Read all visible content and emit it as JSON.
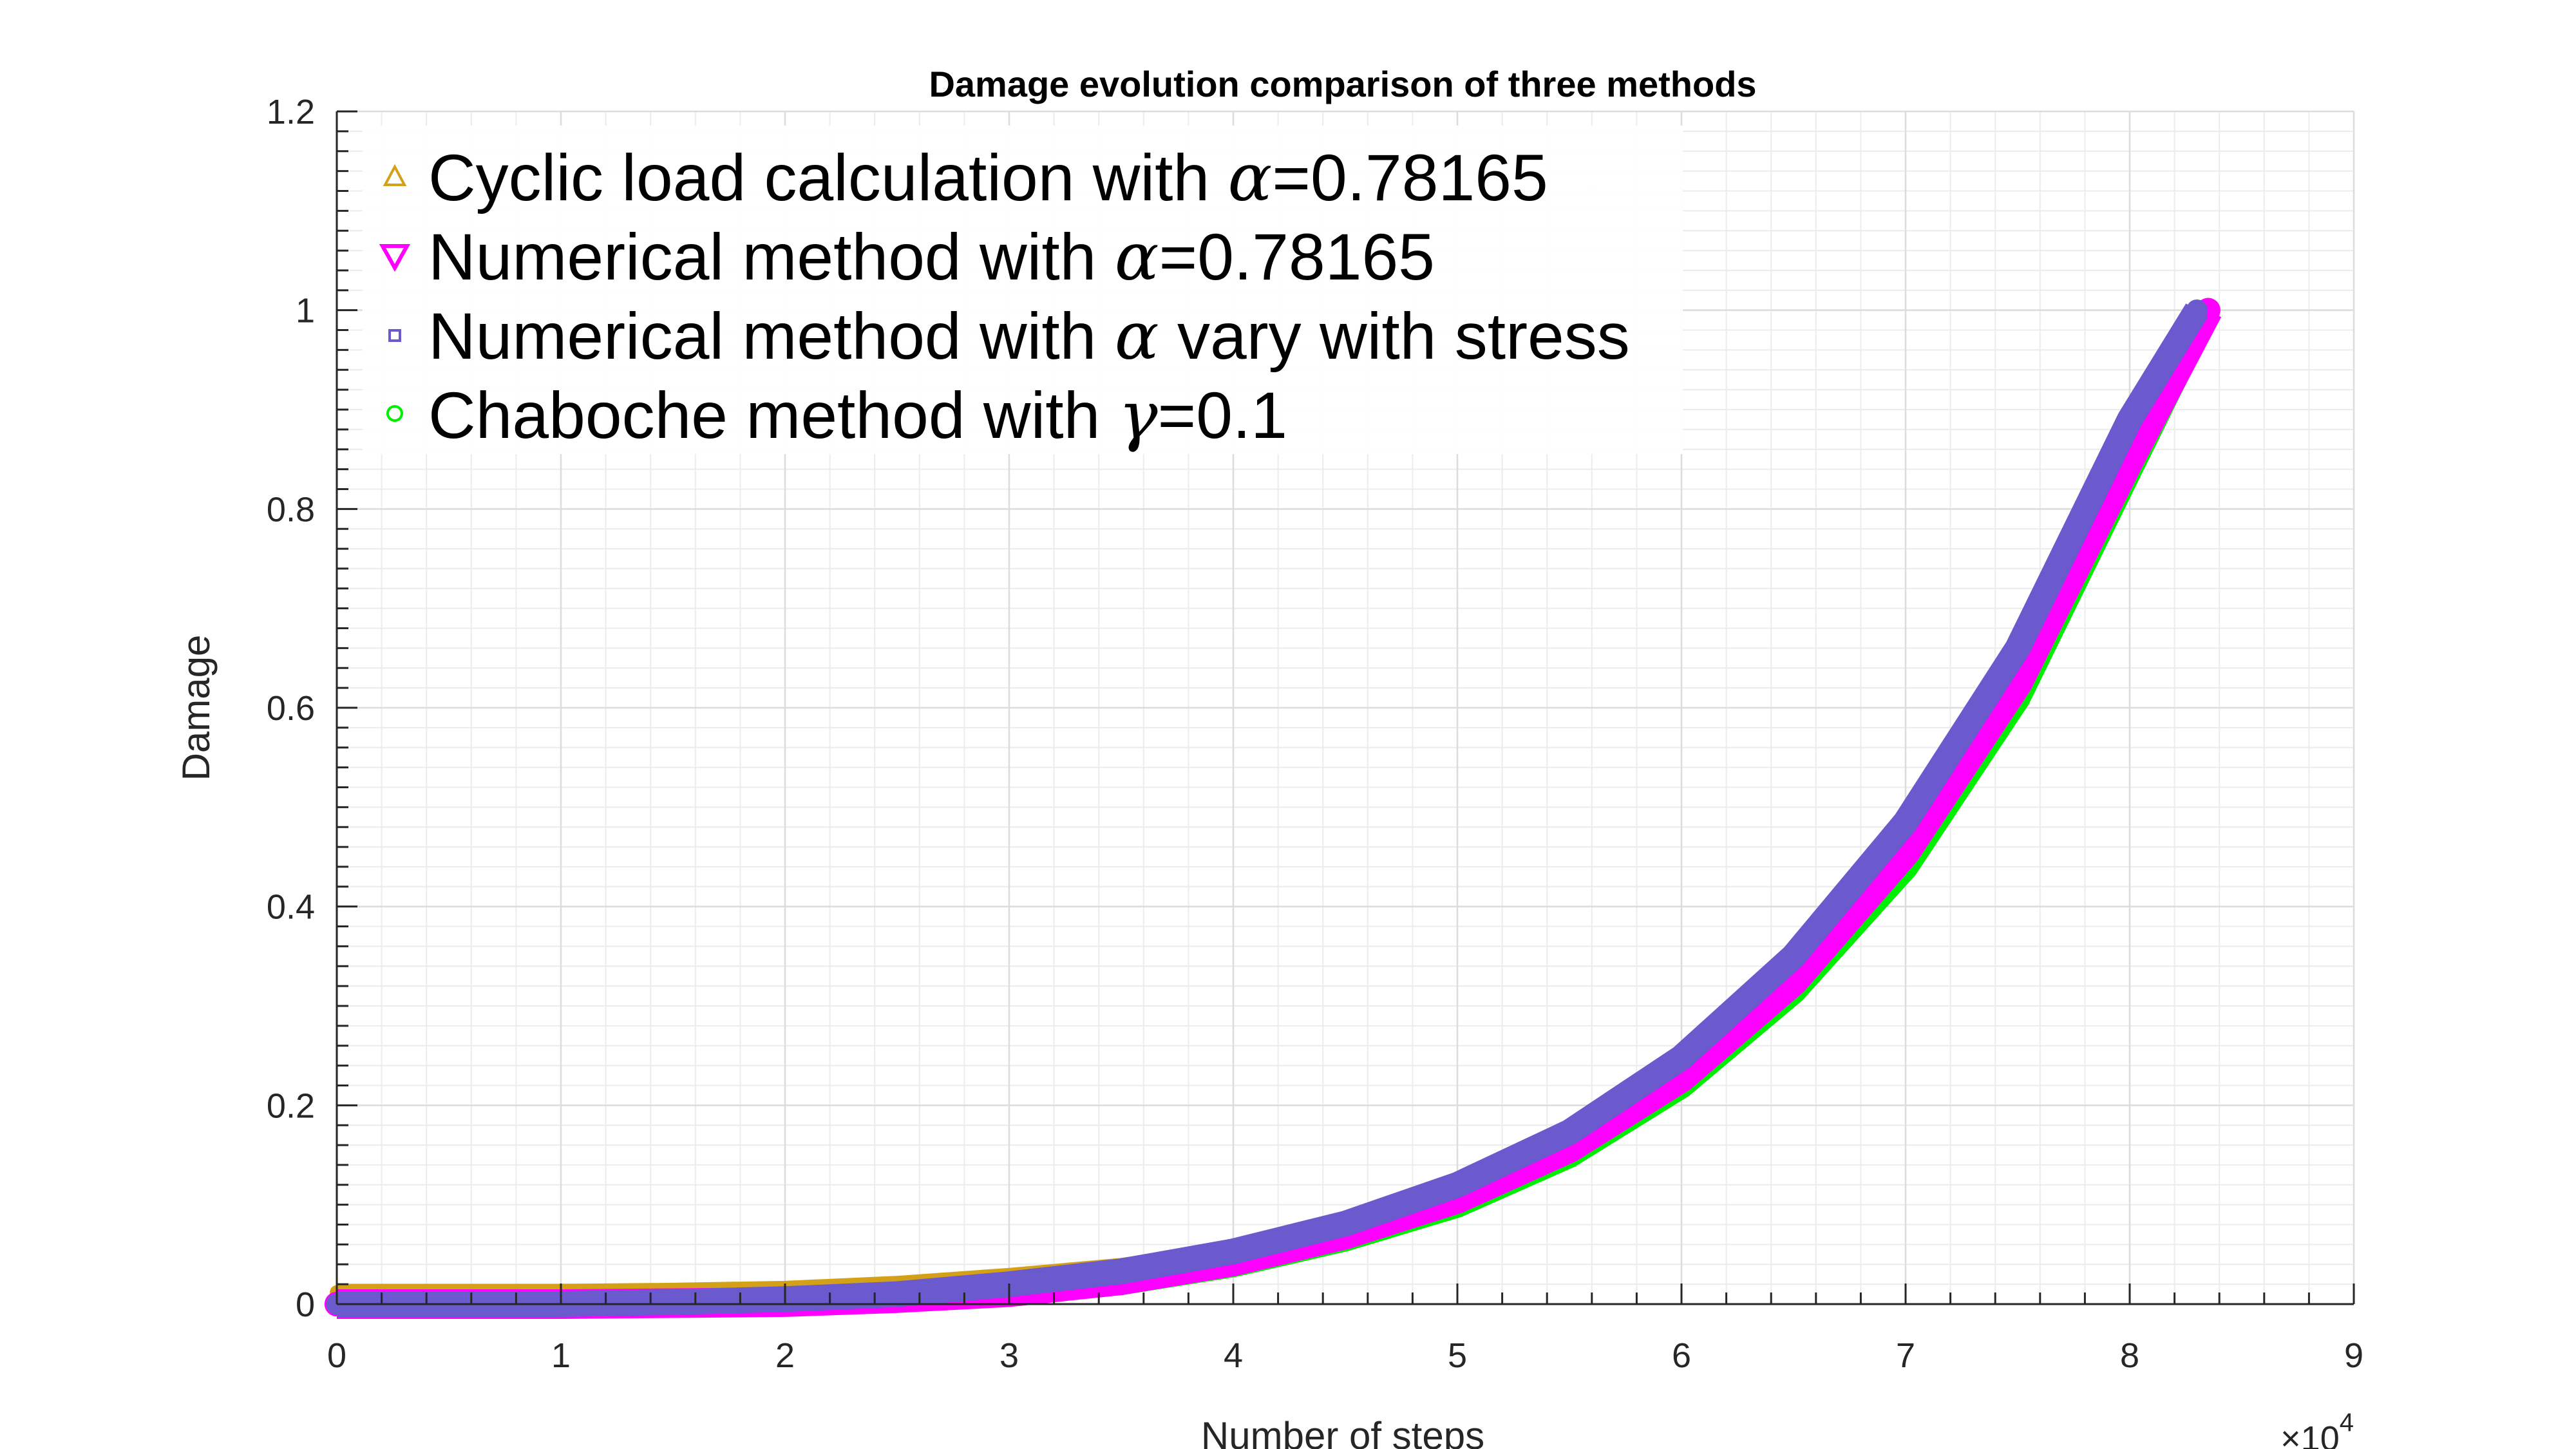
{
  "chart_data": {
    "type": "line",
    "title": "Damage evolution comparison of three methods",
    "xlabel": "Number of steps",
    "ylabel": "Damage",
    "x_exponent_base": "×10",
    "x_exponent_power": "4",
    "xlim": [
      0,
      9
    ],
    "ylim": [
      0,
      1.2
    ],
    "xticks": [
      0,
      1,
      2,
      3,
      4,
      5,
      6,
      7,
      8,
      9
    ],
    "xtick_labels": [
      "0",
      "1",
      "2",
      "3",
      "4",
      "5",
      "6",
      "7",
      "8",
      "9"
    ],
    "yticks": [
      0,
      0.2,
      0.4,
      0.6,
      0.8,
      1,
      1.2
    ],
    "ytick_labels": [
      "0",
      "0.2",
      "0.4",
      "0.6",
      "0.8",
      "1",
      "1.2"
    ],
    "grid": true,
    "minor_grid": true,
    "legend_position": "top-left",
    "series": [
      {
        "name": "Cyclic load calculation with α=0.78165",
        "legend_prefix": "Cyclic load calculation with ",
        "legend_symbol": "α",
        "legend_suffix": "=0.78165",
        "color": "#D4A017",
        "marker": "triangle-up",
        "x": [
          0,
          0.5,
          1,
          1.5,
          2,
          2.5,
          3,
          3.5,
          4,
          4.5,
          5,
          5.5,
          6,
          6.5,
          7,
          7.5,
          8,
          8.3
        ],
        "y": [
          0.012,
          0.012,
          0.012,
          0.013,
          0.015,
          0.02,
          0.028,
          0.038,
          0.054,
          0.078,
          0.113,
          0.165,
          0.238,
          0.34,
          0.475,
          0.65,
          0.88,
          1.0
        ]
      },
      {
        "name": "Numerical method with α=0.78165",
        "legend_prefix": "Numerical method with ",
        "legend_symbol": "α",
        "legend_suffix": "=0.78165",
        "color": "#FF00FF",
        "marker": "triangle-down",
        "x": [
          0,
          0.5,
          1,
          1.5,
          2,
          2.5,
          3,
          3.5,
          4,
          4.5,
          5,
          5.5,
          6,
          6.5,
          7,
          7.5,
          8,
          8.35
        ],
        "y": [
          0,
          0,
          0,
          0.001,
          0.002,
          0.006,
          0.012,
          0.024,
          0.043,
          0.07,
          0.106,
          0.157,
          0.228,
          0.325,
          0.455,
          0.625,
          0.85,
          1.0
        ]
      },
      {
        "name": "Numerical method with α vary with stress",
        "legend_prefix": "Numerical method with ",
        "legend_symbol": "α",
        "legend_suffix": " vary with stress",
        "color": "#6A5ACD",
        "marker": "square",
        "x": [
          0,
          0.5,
          1,
          1.5,
          2,
          2.5,
          3,
          3.5,
          4,
          4.5,
          5,
          5.5,
          6,
          6.5,
          7,
          7.5,
          8,
          8.3
        ],
        "y": [
          0,
          0,
          0,
          0.002,
          0.005,
          0.01,
          0.02,
          0.033,
          0.053,
          0.081,
          0.12,
          0.173,
          0.248,
          0.35,
          0.485,
          0.66,
          0.89,
          1.0
        ]
      },
      {
        "name": "Chaboche method with γ=0.1",
        "legend_prefix": "Chaboche method with ",
        "legend_symbol": "γ",
        "legend_suffix": "=0.1",
        "color": "#00EE00",
        "marker": "circle",
        "x": [
          0,
          0.5,
          1,
          1.5,
          2,
          2.5,
          3,
          3.5,
          4,
          4.5,
          5,
          5.5,
          6,
          6.5,
          7,
          7.5,
          8,
          8.35
        ],
        "y": [
          0,
          0,
          0,
          0.001,
          0.002,
          0.005,
          0.011,
          0.022,
          0.04,
          0.066,
          0.1,
          0.15,
          0.22,
          0.315,
          0.44,
          0.61,
          0.84,
          1.0
        ]
      }
    ]
  }
}
